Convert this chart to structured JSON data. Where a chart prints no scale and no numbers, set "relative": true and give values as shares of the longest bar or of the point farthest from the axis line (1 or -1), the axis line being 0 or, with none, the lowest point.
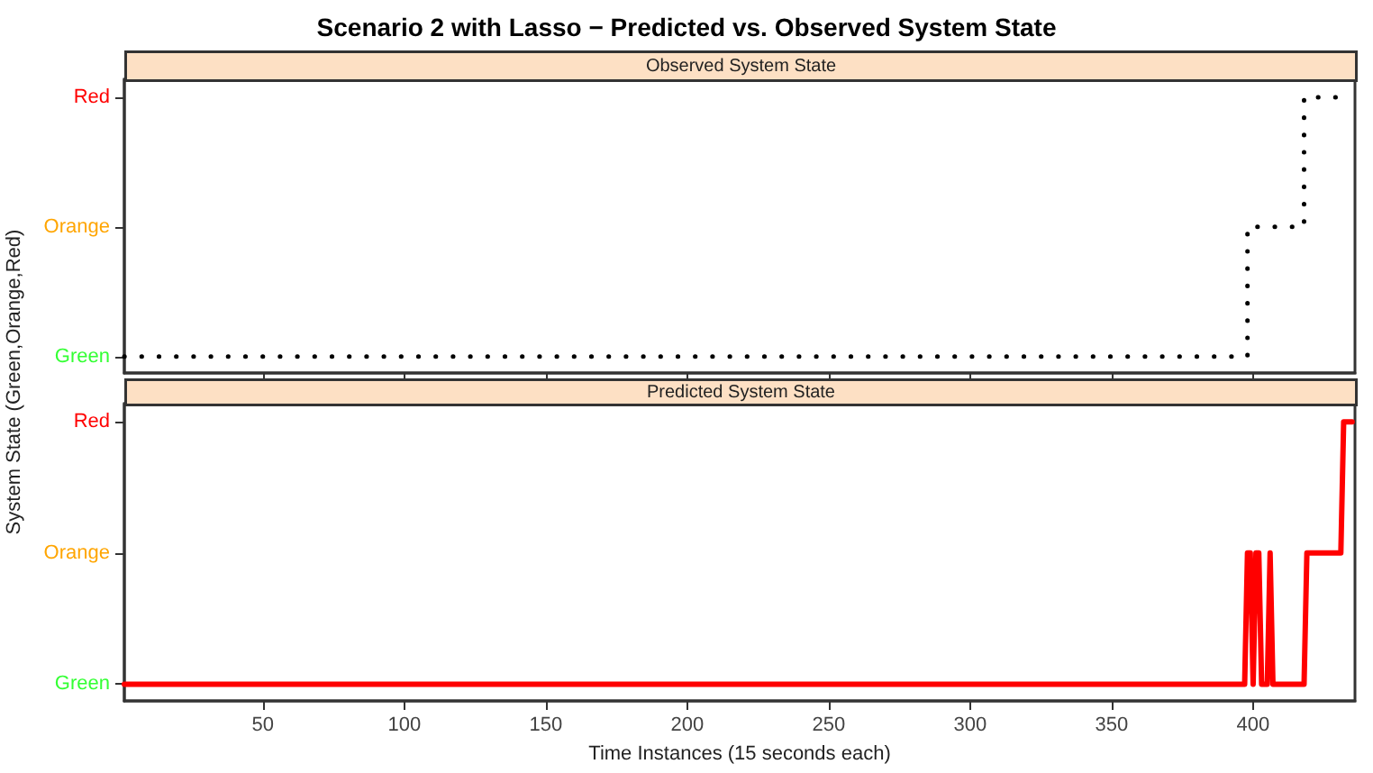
{
  "chart_data": [
    {
      "type": "step",
      "title": "Scenario 2 with Lasso − Predicted vs. Observed System State",
      "subtitle": "Observed System State",
      "ylabel": "System State (Green,Orange,Red)",
      "relative": true,
      "annotations": [
        "Green",
        "Orange",
        "Red"
      ],
      "x": [
        1,
        398,
        418,
        435
      ],
      "values": [
        0.06,
        0.53,
        1,
        1
      ],
      "color": "#000000",
      "line_style": "dotted",
      "marker": "none",
      "xlim": [
        1,
        436
      ],
      "xticks": [
        50,
        100,
        150,
        200,
        250,
        300,
        350,
        400
      ],
      "tick_labels": false,
      "grid": false
    },
    {
      "type": "line",
      "title": "Predicted System State",
      "xlabel": "Time Instances (15 seconds each)",
      "relative": true,
      "annotations": [
        "Green",
        "Orange",
        "Red"
      ],
      "x": [
        1,
        397,
        398,
        399,
        400,
        401,
        402,
        403,
        405,
        406,
        407,
        418,
        419,
        431,
        432,
        435
      ],
      "values": [
        0.06,
        0.06,
        0.53,
        0.53,
        0.06,
        0.53,
        0.53,
        0.06,
        0.06,
        0.53,
        0.06,
        0.06,
        0.53,
        0.53,
        1,
        1
      ],
      "color": "#ff0000",
      "line_style": "solid",
      "marker": "none",
      "xlim": [
        1,
        436
      ],
      "xticks": [
        50,
        100,
        150,
        200,
        250,
        300,
        350,
        400
      ],
      "tick_labels": "x",
      "grid": false
    }
  ]
}
